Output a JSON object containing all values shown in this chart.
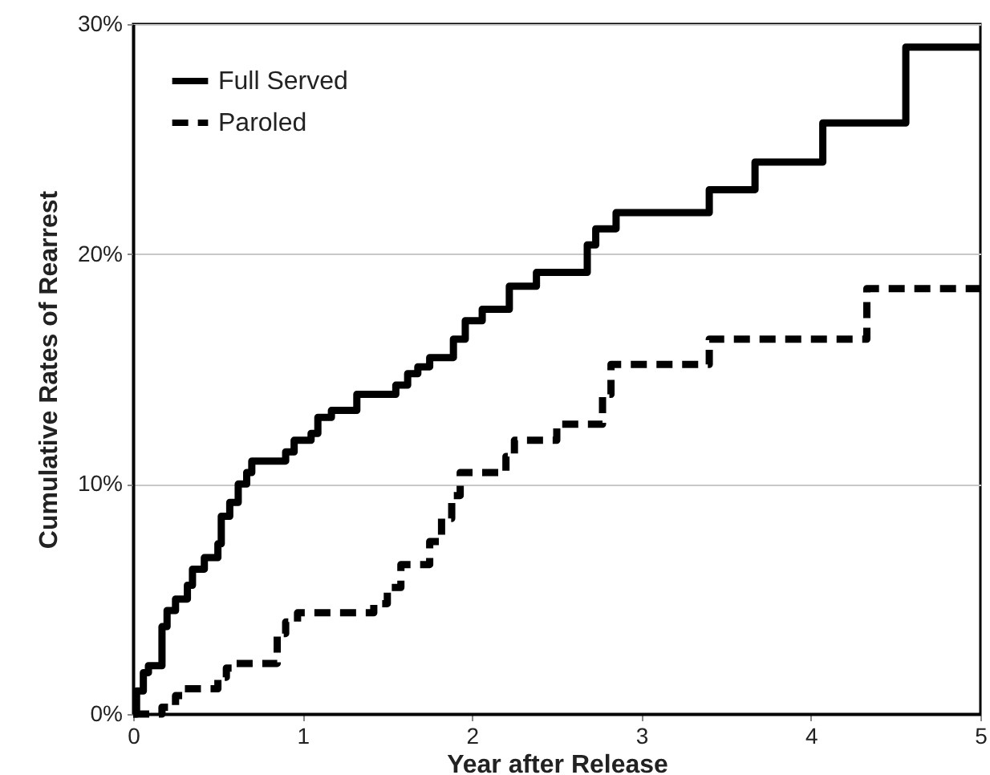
{
  "chart_data": {
    "type": "step",
    "xlabel": "Year after Release",
    "ylabel": "Cumulative Rates of Rearrest",
    "xlim": [
      0,
      5
    ],
    "xticks": [
      0,
      1,
      2,
      3,
      4,
      5
    ],
    "ylim": [
      0,
      30
    ],
    "yticks": [
      {
        "value": 0,
        "label": "0%"
      },
      {
        "value": 10,
        "label": "10%"
      },
      {
        "value": 20,
        "label": "20%"
      },
      {
        "value": 30,
        "label": "30%"
      }
    ],
    "grid": "y",
    "legend": "top left",
    "marker": "none",
    "series": [
      {
        "name": "Full Served",
        "color": "#000000",
        "line_style": "solid",
        "x": [
          0,
          0.02,
          0.06,
          0.09,
          0.17,
          0.2,
          0.25,
          0.32,
          0.35,
          0.42,
          0.5,
          0.52,
          0.57,
          0.62,
          0.67,
          0.7,
          0.9,
          0.95,
          1.05,
          1.09,
          1.17,
          1.32,
          1.55,
          1.62,
          1.68,
          1.75,
          1.89,
          1.96,
          2.06,
          2.22,
          2.38,
          2.68,
          2.73,
          2.85,
          3.4,
          3.67,
          4.07,
          4.56,
          5
        ],
        "values": [
          0,
          1.0,
          1.8,
          2.1,
          3.8,
          4.5,
          5.0,
          5.6,
          6.3,
          6.8,
          7.4,
          8.6,
          9.2,
          10.0,
          10.5,
          11.0,
          11.4,
          11.9,
          12.2,
          12.9,
          13.2,
          13.9,
          14.3,
          14.8,
          15.1,
          15.5,
          16.3,
          17.1,
          17.6,
          18.6,
          19.2,
          20.4,
          21.1,
          21.8,
          22.8,
          24.0,
          25.7,
          29.0,
          29.0
        ]
      },
      {
        "name": "Paroled",
        "color": "#000000",
        "line_style": "dashed",
        "x": [
          0,
          0.17,
          0.25,
          0.3,
          0.5,
          0.55,
          0.6,
          0.85,
          0.9,
          0.97,
          1.42,
          1.5,
          1.58,
          1.75,
          1.82,
          1.88,
          1.93,
          2.2,
          2.25,
          2.5,
          2.77,
          2.82,
          3.4,
          4.33,
          5
        ],
        "values": [
          0,
          0.3,
          0.8,
          1.1,
          1.6,
          2.0,
          2.2,
          3.5,
          4.0,
          4.4,
          4.8,
          5.5,
          6.5,
          7.5,
          8.5,
          9.5,
          10.5,
          11.2,
          11.9,
          12.6,
          13.9,
          15.2,
          16.3,
          18.5,
          18.5
        ]
      }
    ]
  }
}
